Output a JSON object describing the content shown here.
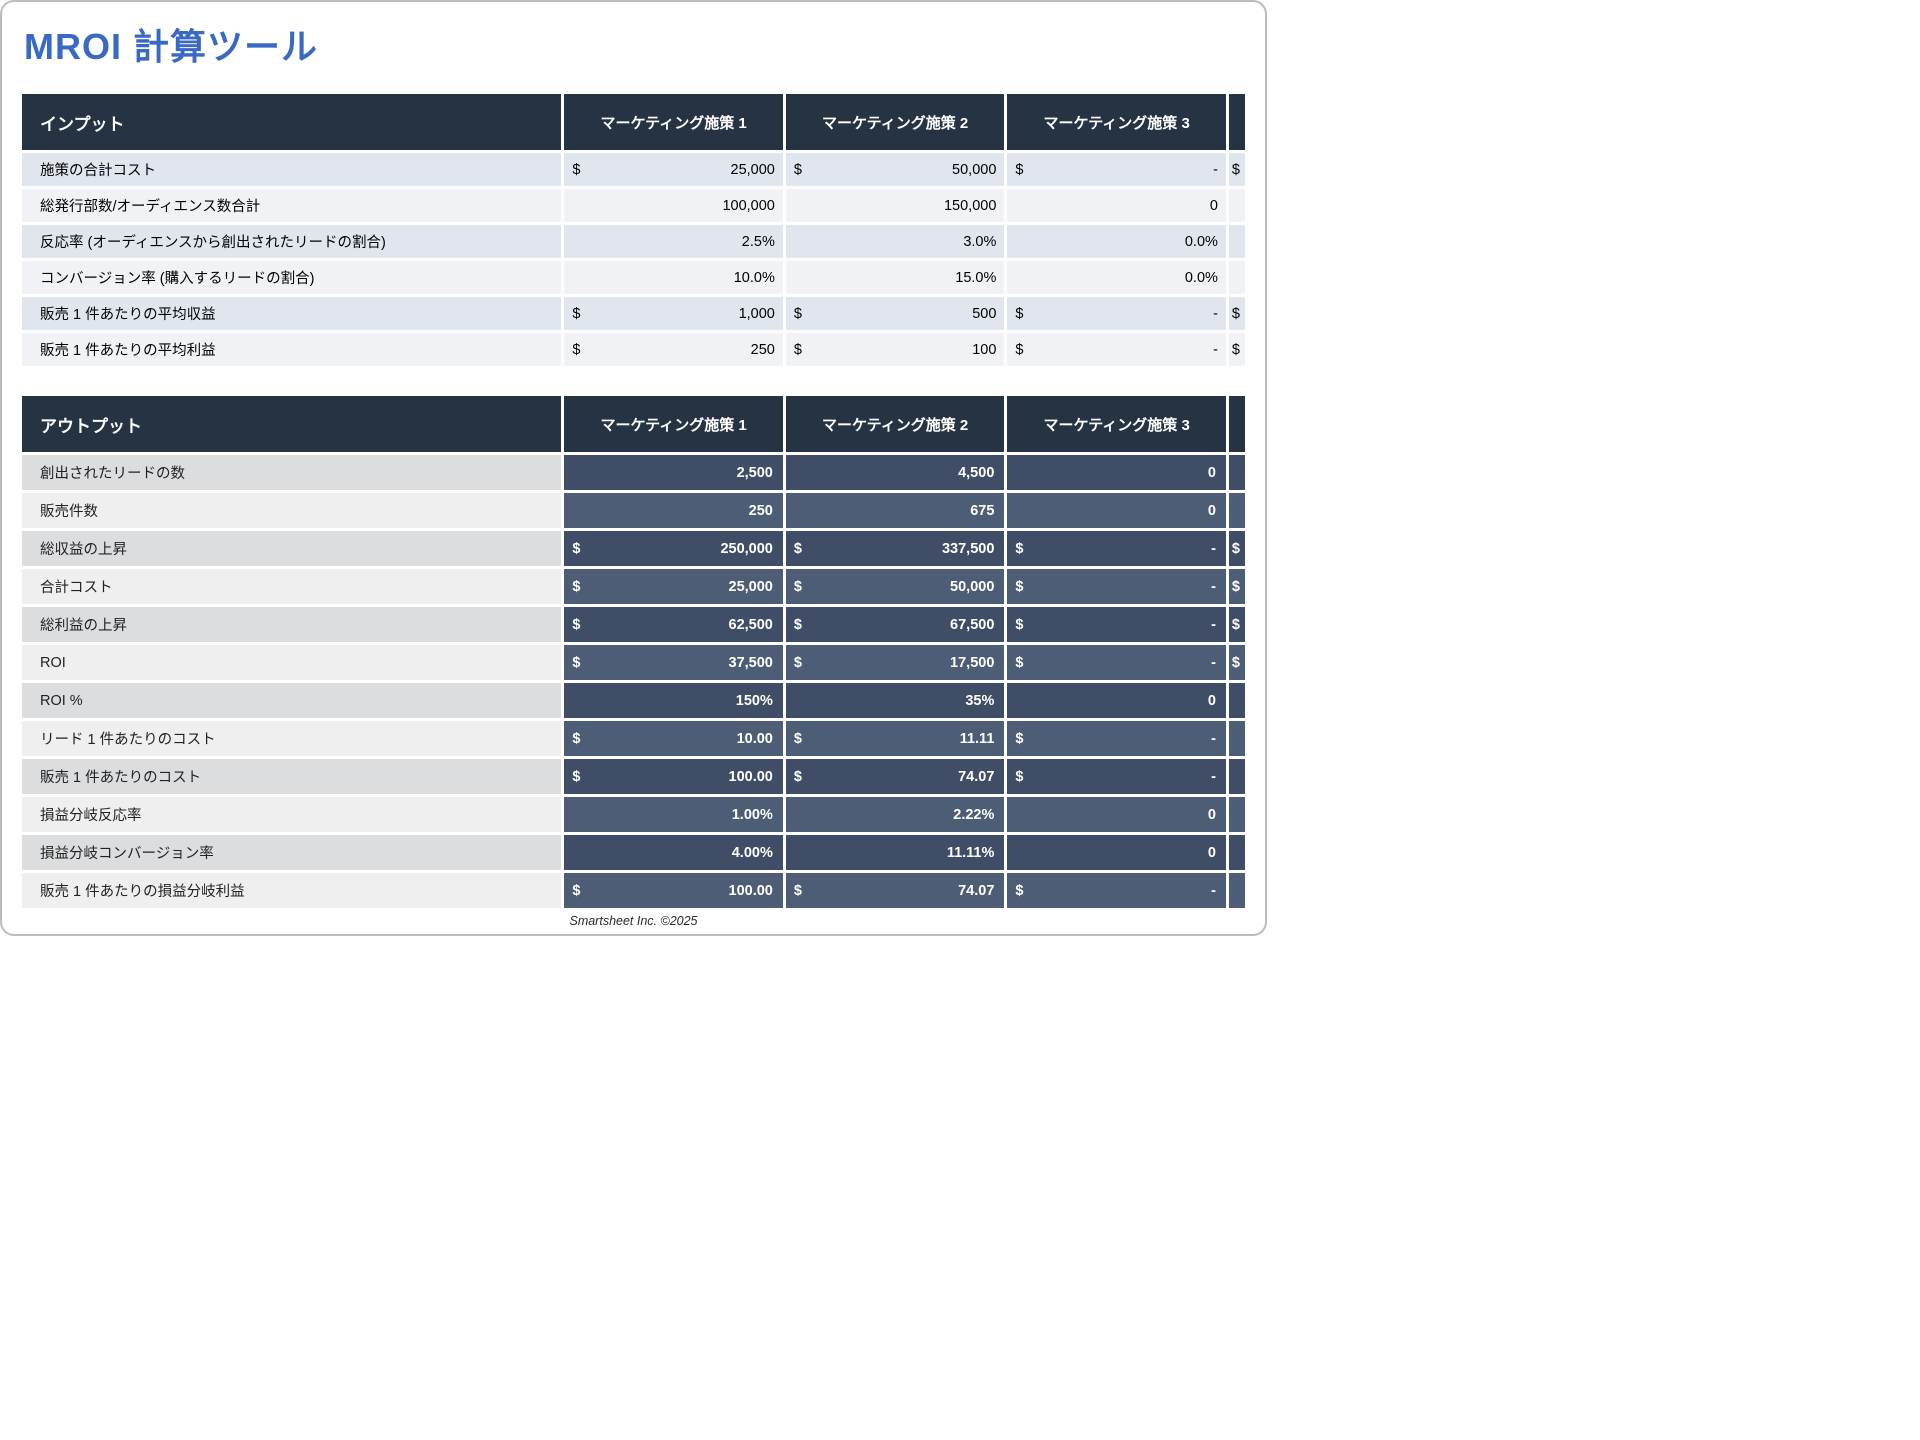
{
  "title": "MROI 計算ツール",
  "footer": "Smartsheet Inc. ©2025",
  "columns": [
    "マーケティング施策 1",
    "マーケティング施策 2",
    "マーケティング施策 3"
  ],
  "input": {
    "header": "インプット",
    "rows": [
      {
        "label": "施策の合計コスト",
        "dollar": true,
        "v": [
          "25,000",
          "50,000",
          "-"
        ],
        "p4": "$"
      },
      {
        "label": "総発行部数/オーディエンス数合計",
        "dollar": false,
        "v": [
          "100,000",
          "150,000",
          "0"
        ],
        "p4": ""
      },
      {
        "label": "反応率 (オーディエンスから創出されたリードの割合)",
        "dollar": false,
        "v": [
          "2.5%",
          "3.0%",
          "0.0%"
        ],
        "p4": ""
      },
      {
        "label": "コンバージョン率 (購入するリードの割合)",
        "dollar": false,
        "v": [
          "10.0%",
          "15.0%",
          "0.0%"
        ],
        "p4": ""
      },
      {
        "label": "販売 1 件あたりの平均収益",
        "dollar": true,
        "v": [
          "1,000",
          "500",
          "-"
        ],
        "p4": "$"
      },
      {
        "label": "販売 1 件あたりの平均利益",
        "dollar": true,
        "v": [
          "250",
          "100",
          "-"
        ],
        "p4": "$"
      }
    ]
  },
  "output": {
    "header": "アウトプット",
    "rows": [
      {
        "label": "創出されたリードの数",
        "dollar": false,
        "v": [
          "2,500",
          "4,500",
          "0"
        ],
        "p4": ""
      },
      {
        "label": "販売件数",
        "dollar": false,
        "v": [
          "250",
          "675",
          "0"
        ],
        "p4": ""
      },
      {
        "label": "総収益の上昇",
        "dollar": true,
        "v": [
          "250,000",
          "337,500",
          "-"
        ],
        "p4": "$"
      },
      {
        "label": "合計コスト",
        "dollar": true,
        "v": [
          "25,000",
          "50,000",
          "-"
        ],
        "p4": "$"
      },
      {
        "label": "総利益の上昇",
        "dollar": true,
        "v": [
          "62,500",
          "67,500",
          "-"
        ],
        "p4": "$"
      },
      {
        "label": "ROI",
        "dollar": true,
        "v": [
          "37,500",
          "17,500",
          "-"
        ],
        "p4": "$"
      },
      {
        "label": "ROI %",
        "dollar": false,
        "v": [
          "150%",
          "35%",
          "0"
        ],
        "p4": ""
      },
      {
        "label": "リード 1 件あたりのコスト",
        "dollar": true,
        "v": [
          "10.00",
          "11.11",
          "-"
        ],
        "p4": ""
      },
      {
        "label": "販売 1 件あたりのコスト",
        "dollar": true,
        "v": [
          "100.00",
          "74.07",
          "-"
        ],
        "p4": ""
      },
      {
        "label": "損益分岐反応率",
        "dollar": false,
        "v": [
          "1.00%",
          "2.22%",
          "0"
        ],
        "p4": ""
      },
      {
        "label": "損益分岐コンバージョン率",
        "dollar": false,
        "v": [
          "4.00%",
          "11.11%",
          "0"
        ],
        "p4": ""
      },
      {
        "label": "販売 1 件あたりの損益分岐利益",
        "dollar": true,
        "v": [
          "100.00",
          "74.07",
          "-"
        ],
        "p4": ""
      }
    ]
  }
}
